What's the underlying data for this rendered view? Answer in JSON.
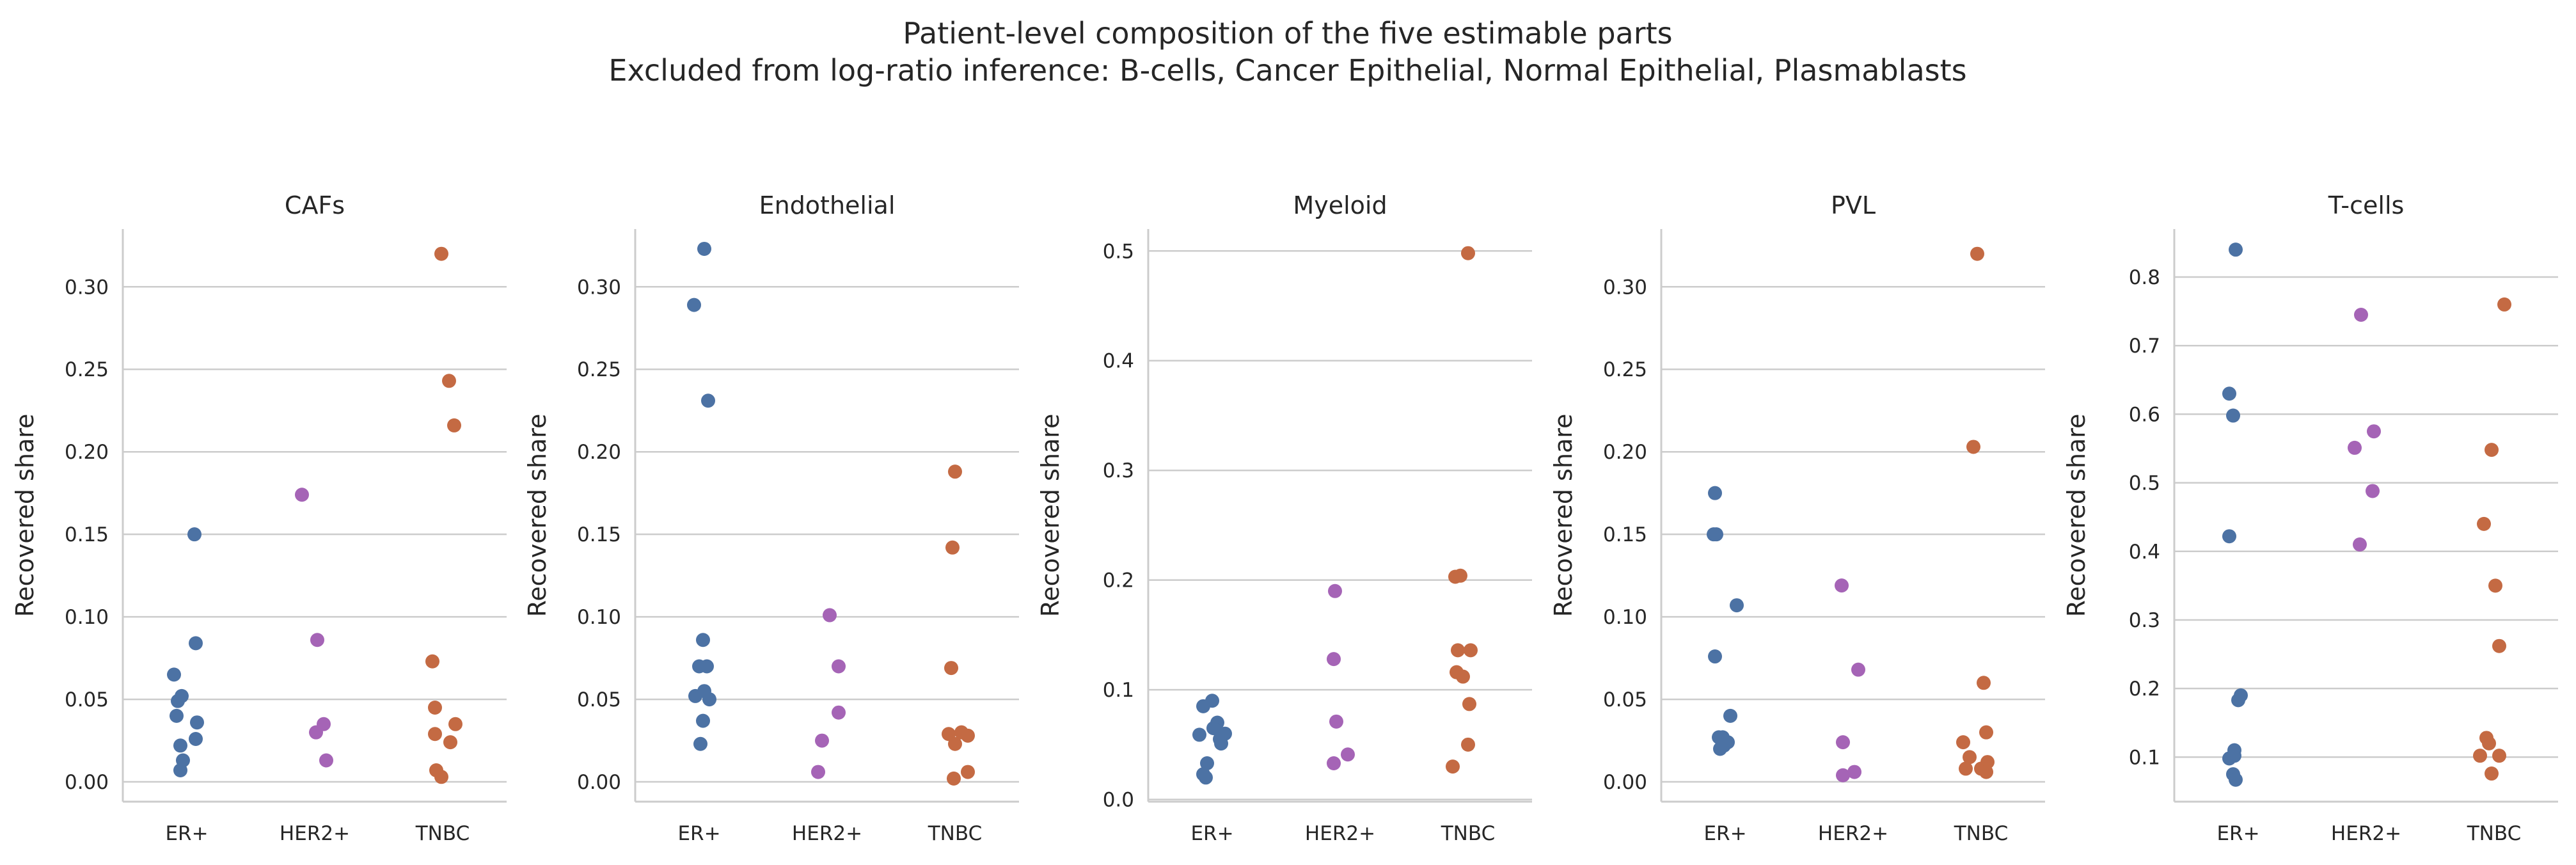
{
  "figure": {
    "title_line1": "Patient-level composition of the five estimable parts",
    "title_line2": "Excluded from log-ratio inference: B-cells, Cancer Epithelial, Normal Epithelial, Plasmablasts"
  },
  "colors": {
    "ER+": "#4c72a4",
    "HER2+": "#a564b6",
    "TNBC": "#c46a43"
  },
  "chart_data": [
    {
      "type": "scatter",
      "title": "CAFs",
      "xlabel": "",
      "ylabel": "Recovered share",
      "categories": [
        "ER+",
        "HER2+",
        "TNBC"
      ],
      "ylim": [
        -0.012,
        0.335
      ],
      "yticks": [
        0.0,
        0.05,
        0.1,
        0.15,
        0.2,
        0.25,
        0.3
      ],
      "ytick_labels": [
        "0.00",
        "0.05",
        "0.10",
        "0.15",
        "0.20",
        "0.25",
        "0.30"
      ],
      "grid": true,
      "points": [
        {
          "category": "ER+",
          "jitter": 0.06,
          "value": 0.15
        },
        {
          "category": "ER+",
          "jitter": 0.07,
          "value": 0.084
        },
        {
          "category": "ER+",
          "jitter": -0.1,
          "value": 0.065
        },
        {
          "category": "ER+",
          "jitter": -0.04,
          "value": 0.052
        },
        {
          "category": "ER+",
          "jitter": -0.07,
          "value": 0.049
        },
        {
          "category": "ER+",
          "jitter": -0.08,
          "value": 0.04
        },
        {
          "category": "ER+",
          "jitter": 0.08,
          "value": 0.036
        },
        {
          "category": "ER+",
          "jitter": 0.07,
          "value": 0.026
        },
        {
          "category": "ER+",
          "jitter": -0.05,
          "value": 0.022
        },
        {
          "category": "ER+",
          "jitter": -0.03,
          "value": 0.013
        },
        {
          "category": "ER+",
          "jitter": -0.05,
          "value": 0.007
        },
        {
          "category": "HER2+",
          "jitter": -0.1,
          "value": 0.174
        },
        {
          "category": "HER2+",
          "jitter": 0.02,
          "value": 0.086
        },
        {
          "category": "HER2+",
          "jitter": 0.07,
          "value": 0.035
        },
        {
          "category": "HER2+",
          "jitter": 0.01,
          "value": 0.03
        },
        {
          "category": "HER2+",
          "jitter": 0.09,
          "value": 0.013
        },
        {
          "category": "TNBC",
          "jitter": -0.01,
          "value": 0.32
        },
        {
          "category": "TNBC",
          "jitter": 0.05,
          "value": 0.243
        },
        {
          "category": "TNBC",
          "jitter": 0.09,
          "value": 0.216
        },
        {
          "category": "TNBC",
          "jitter": -0.08,
          "value": 0.073
        },
        {
          "category": "TNBC",
          "jitter": -0.06,
          "value": 0.045
        },
        {
          "category": "TNBC",
          "jitter": 0.1,
          "value": 0.035
        },
        {
          "category": "TNBC",
          "jitter": -0.06,
          "value": 0.029
        },
        {
          "category": "TNBC",
          "jitter": 0.06,
          "value": 0.024
        },
        {
          "category": "TNBC",
          "jitter": -0.05,
          "value": 0.007
        },
        {
          "category": "TNBC",
          "jitter": -0.01,
          "value": 0.003
        }
      ]
    },
    {
      "type": "scatter",
      "title": "Endothelial",
      "xlabel": "",
      "ylabel": "Recovered share",
      "categories": [
        "ER+",
        "HER2+",
        "TNBC"
      ],
      "ylim": [
        -0.012,
        0.335
      ],
      "yticks": [
        0.0,
        0.05,
        0.1,
        0.15,
        0.2,
        0.25,
        0.3
      ],
      "ytick_labels": [
        "0.00",
        "0.05",
        "0.10",
        "0.15",
        "0.20",
        "0.25",
        "0.30"
      ],
      "grid": true,
      "points": [
        {
          "category": "ER+",
          "jitter": 0.04,
          "value": 0.323
        },
        {
          "category": "ER+",
          "jitter": -0.04,
          "value": 0.289
        },
        {
          "category": "ER+",
          "jitter": 0.07,
          "value": 0.231
        },
        {
          "category": "ER+",
          "jitter": 0.03,
          "value": 0.086
        },
        {
          "category": "ER+",
          "jitter": 0.0,
          "value": 0.07
        },
        {
          "category": "ER+",
          "jitter": 0.06,
          "value": 0.07
        },
        {
          "category": "ER+",
          "jitter": 0.04,
          "value": 0.055
        },
        {
          "category": "ER+",
          "jitter": -0.03,
          "value": 0.052
        },
        {
          "category": "ER+",
          "jitter": 0.08,
          "value": 0.05
        },
        {
          "category": "ER+",
          "jitter": 0.03,
          "value": 0.037
        },
        {
          "category": "ER+",
          "jitter": 0.01,
          "value": 0.023
        },
        {
          "category": "HER2+",
          "jitter": 0.02,
          "value": 0.101
        },
        {
          "category": "HER2+",
          "jitter": 0.09,
          "value": 0.07
        },
        {
          "category": "HER2+",
          "jitter": 0.09,
          "value": 0.042
        },
        {
          "category": "HER2+",
          "jitter": -0.04,
          "value": 0.025
        },
        {
          "category": "HER2+",
          "jitter": -0.07,
          "value": 0.006
        },
        {
          "category": "TNBC",
          "jitter": 0.0,
          "value": 0.188
        },
        {
          "category": "TNBC",
          "jitter": -0.02,
          "value": 0.142
        },
        {
          "category": "TNBC",
          "jitter": -0.03,
          "value": 0.069
        },
        {
          "category": "TNBC",
          "jitter": -0.05,
          "value": 0.029
        },
        {
          "category": "TNBC",
          "jitter": 0.05,
          "value": 0.03
        },
        {
          "category": "TNBC",
          "jitter": 0.1,
          "value": 0.028
        },
        {
          "category": "TNBC",
          "jitter": 0.0,
          "value": 0.023
        },
        {
          "category": "TNBC",
          "jitter": 0.1,
          "value": 0.006
        },
        {
          "category": "TNBC",
          "jitter": -0.01,
          "value": 0.002
        }
      ]
    },
    {
      "type": "scatter",
      "title": "Myeloid",
      "xlabel": "",
      "ylabel": "Recovered share",
      "categories": [
        "ER+",
        "HER2+",
        "TNBC"
      ],
      "ylim": [
        -0.002,
        0.52
      ],
      "yticks": [
        0.0,
        0.1,
        0.2,
        0.3,
        0.4,
        0.5
      ],
      "ytick_labels": [
        "0.0",
        "0.1",
        "0.2",
        "0.3",
        "0.4",
        "0.5"
      ],
      "grid": true,
      "points": [
        {
          "category": "ER+",
          "jitter": -0.07,
          "value": 0.085
        },
        {
          "category": "ER+",
          "jitter": 0.0,
          "value": 0.09
        },
        {
          "category": "ER+",
          "jitter": 0.04,
          "value": 0.07
        },
        {
          "category": "ER+",
          "jitter": 0.01,
          "value": 0.065
        },
        {
          "category": "ER+",
          "jitter": -0.1,
          "value": 0.059
        },
        {
          "category": "ER+",
          "jitter": 0.1,
          "value": 0.06
        },
        {
          "category": "ER+",
          "jitter": 0.06,
          "value": 0.055
        },
        {
          "category": "ER+",
          "jitter": 0.07,
          "value": 0.051
        },
        {
          "category": "ER+",
          "jitter": -0.04,
          "value": 0.033
        },
        {
          "category": "ER+",
          "jitter": -0.07,
          "value": 0.023
        },
        {
          "category": "ER+",
          "jitter": -0.05,
          "value": 0.02
        },
        {
          "category": "HER2+",
          "jitter": -0.04,
          "value": 0.19
        },
        {
          "category": "HER2+",
          "jitter": -0.05,
          "value": 0.128
        },
        {
          "category": "HER2+",
          "jitter": -0.03,
          "value": 0.071
        },
        {
          "category": "HER2+",
          "jitter": 0.06,
          "value": 0.041
        },
        {
          "category": "HER2+",
          "jitter": -0.05,
          "value": 0.033
        },
        {
          "category": "TNBC",
          "jitter": 0.0,
          "value": 0.498
        },
        {
          "category": "TNBC",
          "jitter": -0.1,
          "value": 0.203
        },
        {
          "category": "TNBC",
          "jitter": -0.06,
          "value": 0.204
        },
        {
          "category": "TNBC",
          "jitter": -0.08,
          "value": 0.136
        },
        {
          "category": "TNBC",
          "jitter": 0.02,
          "value": 0.136
        },
        {
          "category": "TNBC",
          "jitter": -0.09,
          "value": 0.116
        },
        {
          "category": "TNBC",
          "jitter": -0.04,
          "value": 0.112
        },
        {
          "category": "TNBC",
          "jitter": 0.01,
          "value": 0.087
        },
        {
          "category": "TNBC",
          "jitter": 0.0,
          "value": 0.05
        },
        {
          "category": "TNBC",
          "jitter": -0.12,
          "value": 0.03
        }
      ]
    },
    {
      "type": "scatter",
      "title": "PVL",
      "xlabel": "",
      "ylabel": "Recovered share",
      "categories": [
        "ER+",
        "HER2+",
        "TNBC"
      ],
      "ylim": [
        -0.012,
        0.335
      ],
      "yticks": [
        0.0,
        0.05,
        0.1,
        0.15,
        0.2,
        0.25,
        0.3
      ],
      "ytick_labels": [
        "0.00",
        "0.05",
        "0.10",
        "0.15",
        "0.20",
        "0.25",
        "0.30"
      ],
      "grid": true,
      "points": [
        {
          "category": "ER+",
          "jitter": -0.08,
          "value": 0.175
        },
        {
          "category": "ER+",
          "jitter": -0.09,
          "value": 0.15
        },
        {
          "category": "ER+",
          "jitter": -0.07,
          "value": 0.15
        },
        {
          "category": "ER+",
          "jitter": 0.09,
          "value": 0.107
        },
        {
          "category": "ER+",
          "jitter": -0.08,
          "value": 0.076
        },
        {
          "category": "ER+",
          "jitter": 0.04,
          "value": 0.04
        },
        {
          "category": "ER+",
          "jitter": -0.05,
          "value": 0.027
        },
        {
          "category": "ER+",
          "jitter": -0.02,
          "value": 0.027
        },
        {
          "category": "ER+",
          "jitter": 0.02,
          "value": 0.024
        },
        {
          "category": "ER+",
          "jitter": -0.01,
          "value": 0.022
        },
        {
          "category": "ER+",
          "jitter": -0.04,
          "value": 0.02
        },
        {
          "category": "HER2+",
          "jitter": -0.09,
          "value": 0.119
        },
        {
          "category": "HER2+",
          "jitter": 0.04,
          "value": 0.068
        },
        {
          "category": "HER2+",
          "jitter": -0.08,
          "value": 0.024
        },
        {
          "category": "HER2+",
          "jitter": 0.01,
          "value": 0.006
        },
        {
          "category": "HER2+",
          "jitter": -0.08,
          "value": 0.004
        },
        {
          "category": "TNBC",
          "jitter": -0.03,
          "value": 0.32
        },
        {
          "category": "TNBC",
          "jitter": -0.06,
          "value": 0.203
        },
        {
          "category": "TNBC",
          "jitter": 0.02,
          "value": 0.06
        },
        {
          "category": "TNBC",
          "jitter": 0.04,
          "value": 0.03
        },
        {
          "category": "TNBC",
          "jitter": -0.14,
          "value": 0.024
        },
        {
          "category": "TNBC",
          "jitter": -0.09,
          "value": 0.015
        },
        {
          "category": "TNBC",
          "jitter": 0.05,
          "value": 0.012
        },
        {
          "category": "TNBC",
          "jitter": -0.12,
          "value": 0.008
        },
        {
          "category": "TNBC",
          "jitter": 0.0,
          "value": 0.008
        },
        {
          "category": "TNBC",
          "jitter": 0.04,
          "value": 0.006
        }
      ]
    },
    {
      "type": "scatter",
      "title": "T-cells",
      "xlabel": "",
      "ylabel": "Recovered share",
      "categories": [
        "ER+",
        "HER2+",
        "TNBC"
      ],
      "ylim": [
        0.035,
        0.87
      ],
      "yticks": [
        0.1,
        0.2,
        0.3,
        0.4,
        0.5,
        0.6,
        0.7,
        0.8
      ],
      "ytick_labels": [
        "0.1",
        "0.2",
        "0.3",
        "0.4",
        "0.5",
        "0.6",
        "0.7",
        "0.8"
      ],
      "grid": true,
      "points": [
        {
          "category": "ER+",
          "jitter": -0.02,
          "value": 0.84
        },
        {
          "category": "ER+",
          "jitter": -0.07,
          "value": 0.63
        },
        {
          "category": "ER+",
          "jitter": -0.04,
          "value": 0.598
        },
        {
          "category": "ER+",
          "jitter": -0.07,
          "value": 0.422
        },
        {
          "category": "ER+",
          "jitter": 0.02,
          "value": 0.19
        },
        {
          "category": "ER+",
          "jitter": 0.0,
          "value": 0.183
        },
        {
          "category": "ER+",
          "jitter": -0.03,
          "value": 0.11
        },
        {
          "category": "ER+",
          "jitter": -0.03,
          "value": 0.102
        },
        {
          "category": "ER+",
          "jitter": -0.07,
          "value": 0.098
        },
        {
          "category": "ER+",
          "jitter": -0.04,
          "value": 0.075
        },
        {
          "category": "ER+",
          "jitter": -0.02,
          "value": 0.067
        },
        {
          "category": "HER2+",
          "jitter": -0.04,
          "value": 0.745
        },
        {
          "category": "HER2+",
          "jitter": -0.09,
          "value": 0.551
        },
        {
          "category": "HER2+",
          "jitter": 0.06,
          "value": 0.575
        },
        {
          "category": "HER2+",
          "jitter": 0.05,
          "value": 0.488
        },
        {
          "category": "HER2+",
          "jitter": -0.05,
          "value": 0.41
        },
        {
          "category": "TNBC",
          "jitter": 0.08,
          "value": 0.76
        },
        {
          "category": "TNBC",
          "jitter": -0.02,
          "value": 0.548
        },
        {
          "category": "TNBC",
          "jitter": -0.08,
          "value": 0.44
        },
        {
          "category": "TNBC",
          "jitter": 0.01,
          "value": 0.35
        },
        {
          "category": "TNBC",
          "jitter": 0.04,
          "value": 0.262
        },
        {
          "category": "TNBC",
          "jitter": -0.06,
          "value": 0.128
        },
        {
          "category": "TNBC",
          "jitter": -0.04,
          "value": 0.12
        },
        {
          "category": "TNBC",
          "jitter": -0.11,
          "value": 0.102
        },
        {
          "category": "TNBC",
          "jitter": 0.04,
          "value": 0.102
        },
        {
          "category": "TNBC",
          "jitter": -0.02,
          "value": 0.076
        }
      ]
    }
  ]
}
